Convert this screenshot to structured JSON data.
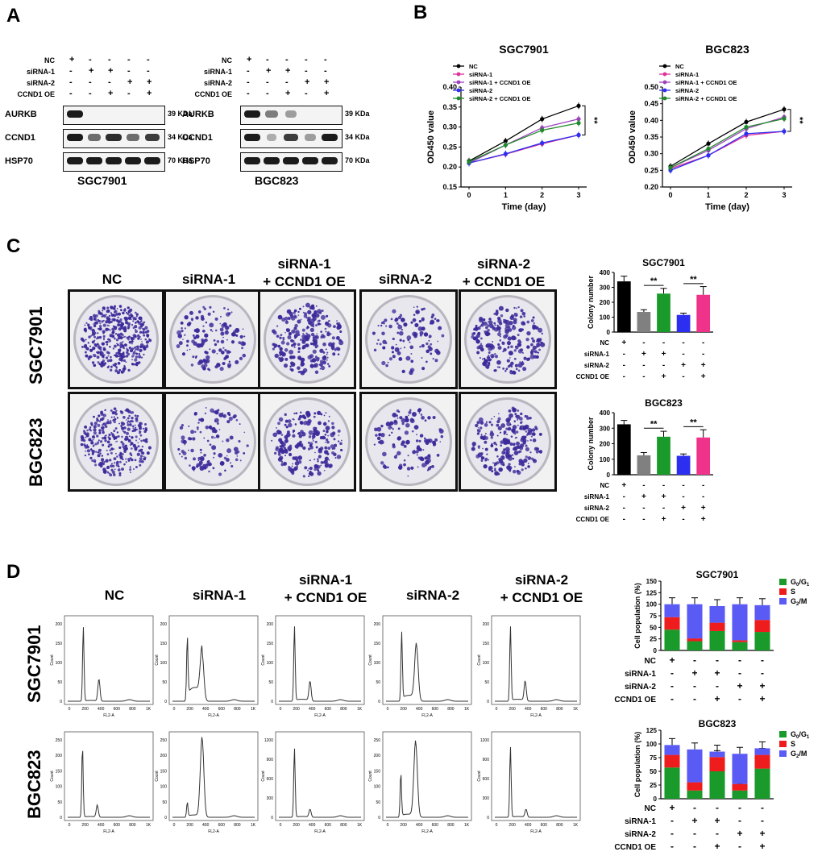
{
  "panel_letters": {
    "a": "A",
    "b": "B",
    "c": "C",
    "d": "D"
  },
  "panel_a": {
    "row_labels": [
      "NC",
      "siRNA-1",
      "siRNA-2",
      "CCND1 OE"
    ],
    "signs": [
      [
        "+",
        "-",
        "-",
        "-",
        "-"
      ],
      [
        "-",
        "+",
        "+",
        "-",
        "-"
      ],
      [
        "-",
        "-",
        "-",
        "+",
        "+"
      ],
      [
        "-",
        "-",
        "+",
        "-",
        "+"
      ]
    ],
    "blots": [
      {
        "name": "SGC7901",
        "proteins": [
          "AURKB",
          "CCND1",
          "HSP70"
        ],
        "kda": [
          "39 KDa",
          "34 KDa",
          "70 KDa"
        ]
      },
      {
        "name": "BGC823",
        "proteins": [
          "AURKB",
          "CCND1",
          "HSP70"
        ],
        "kda": [
          "39 KDa",
          "34 KDa",
          "70 KDa"
        ]
      }
    ]
  },
  "panel_c": {
    "column_titles": [
      [
        "NC"
      ],
      [
        "siRNA-1"
      ],
      [
        "siRNA-1",
        "+ CCND1 OE"
      ],
      [
        "siRNA-2"
      ],
      [
        "siRNA-2",
        "+ CCND1 OE"
      ]
    ],
    "row_labels": [
      "SGC7901",
      "BGC823"
    ],
    "colony_dots_per_plate": [
      [
        430,
        130,
        240,
        110,
        220
      ],
      [
        340,
        120,
        210,
        120,
        220
      ]
    ]
  },
  "panel_d": {
    "column_titles": [
      [
        "NC"
      ],
      [
        "siRNA-1"
      ],
      [
        "siRNA-1",
        "+ CCND1 OE"
      ],
      [
        "siRNA-2"
      ],
      [
        "siRNA-2",
        "+ CCND1 OE"
      ]
    ],
    "row_labels": [
      "SGC7901",
      "BGC823"
    ],
    "hist_x_ticks": [
      "0",
      "200",
      "400",
      "600",
      "800",
      "1K"
    ],
    "hist_xlabel": "FL2-A",
    "hist_ylabel": "Count",
    "hist_y_ticks_sgc": [
      "0",
      "50",
      "100",
      "150",
      "200"
    ],
    "hist_y_ticks_bgc_a": [
      "0",
      "50",
      "100",
      "150",
      "200",
      "250"
    ],
    "hist_y_ticks_bgc_b": [
      "0",
      "300",
      "600",
      "900",
      "1200"
    ]
  },
  "chart_data": [
    {
      "type": "line",
      "title": "SGC7901",
      "xlabel": "Time (day)",
      "ylabel": "OD450 value",
      "x": [
        0,
        1,
        2,
        3
      ],
      "ylim": [
        0.15,
        0.4
      ],
      "yticks": [
        0.15,
        0.2,
        0.25,
        0.3,
        0.35,
        0.4
      ],
      "series": [
        {
          "name": "NC",
          "color": "#000000",
          "values": [
            0.215,
            0.265,
            0.32,
            0.353
          ]
        },
        {
          "name": "siRNA-1",
          "color": "#e0309a",
          "values": [
            0.21,
            0.232,
            0.258,
            0.28
          ]
        },
        {
          "name": "siRNA-1 + CCND1 OE",
          "color": "#a040c0",
          "values": [
            0.21,
            0.255,
            0.298,
            0.32
          ]
        },
        {
          "name": "siRNA-2",
          "color": "#2d2ff0",
          "values": [
            0.21,
            0.233,
            0.26,
            0.28
          ]
        },
        {
          "name": "siRNA-2 + CCND1 OE",
          "color": "#1f8a2a",
          "values": [
            0.213,
            0.255,
            0.292,
            0.31
          ]
        }
      ],
      "annotation": "**"
    },
    {
      "type": "line",
      "title": "BGC823",
      "xlabel": "Time (day)",
      "ylabel": "OD450 value",
      "x": [
        0,
        1,
        2,
        3
      ],
      "ylim": [
        0.2,
        0.5
      ],
      "yticks": [
        0.2,
        0.25,
        0.3,
        0.35,
        0.4,
        0.45,
        0.5
      ],
      "series": [
        {
          "name": "NC",
          "color": "#000000",
          "values": [
            0.262,
            0.33,
            0.395,
            0.433
          ]
        },
        {
          "name": "siRNA-1",
          "color": "#e0309a",
          "values": [
            0.255,
            0.295,
            0.355,
            0.367
          ]
        },
        {
          "name": "siRNA-1 + CCND1 OE",
          "color": "#a040c0",
          "values": [
            0.258,
            0.31,
            0.375,
            0.41
          ]
        },
        {
          "name": "siRNA-2",
          "color": "#2d2ff0",
          "values": [
            0.25,
            0.295,
            0.36,
            0.367
          ]
        },
        {
          "name": "siRNA-2 + CCND1 OE",
          "color": "#1f8a2a",
          "values": [
            0.258,
            0.315,
            0.38,
            0.405
          ]
        }
      ],
      "annotation": "**"
    },
    {
      "type": "bar",
      "title": "SGC7901",
      "ylabel": "Colony number",
      "ylim": [
        0,
        400
      ],
      "yticks": [
        0,
        100,
        200,
        300,
        400
      ],
      "categories": [
        "1",
        "2",
        "3",
        "4",
        "5"
      ],
      "values": [
        340,
        135,
        258,
        115,
        250
      ],
      "errors": [
        35,
        15,
        35,
        12,
        55
      ],
      "colors": [
        "#000000",
        "#808080",
        "#1a9a2a",
        "#2d2ff0",
        "#f0338a"
      ],
      "row_labels": [
        "NC",
        "siRNA-1",
        "siRNA-2",
        "CCND1 OE"
      ],
      "signs": [
        [
          "+",
          "-",
          "-",
          "-",
          "-"
        ],
        [
          "-",
          "+",
          "+",
          "-",
          "-"
        ],
        [
          "-",
          "-",
          "-",
          "+",
          "+"
        ],
        [
          "-",
          "-",
          "+",
          "-",
          "+"
        ]
      ],
      "significance": [
        {
          "from": 1,
          "to": 2,
          "label": "**"
        },
        {
          "from": 3,
          "to": 4,
          "label": "**"
        }
      ]
    },
    {
      "type": "bar",
      "title": "BGC823",
      "ylabel": "Colony number",
      "ylim": [
        0,
        400
      ],
      "yticks": [
        0,
        100,
        200,
        300,
        400
      ],
      "categories": [
        "1",
        "2",
        "3",
        "4",
        "5"
      ],
      "values": [
        325,
        125,
        245,
        122,
        240
      ],
      "errors": [
        25,
        18,
        35,
        12,
        50
      ],
      "colors": [
        "#000000",
        "#808080",
        "#1a9a2a",
        "#2d2ff0",
        "#f0338a"
      ],
      "row_labels": [
        "NC",
        "siRNA-1",
        "siRNA-2",
        "CCND1 OE"
      ],
      "signs": [
        [
          "+",
          "-",
          "-",
          "-",
          "-"
        ],
        [
          "-",
          "+",
          "+",
          "-",
          "-"
        ],
        [
          "-",
          "-",
          "-",
          "+",
          "+"
        ],
        [
          "-",
          "-",
          "+",
          "-",
          "+"
        ]
      ],
      "significance": [
        {
          "from": 1,
          "to": 2,
          "label": "**"
        },
        {
          "from": 3,
          "to": 4,
          "label": "**"
        }
      ]
    },
    {
      "type": "bar",
      "stacked": true,
      "title": "SGC7901",
      "ylabel": "Cell population (%)",
      "ylim": [
        0,
        150
      ],
      "yticks": [
        0,
        25,
        50,
        75,
        100,
        125,
        150
      ],
      "categories": [
        "1",
        "2",
        "3",
        "4",
        "5"
      ],
      "series": [
        {
          "name": "G0/G1",
          "color": "#1a9a2a",
          "values": [
            45,
            20,
            42,
            18,
            40
          ]
        },
        {
          "name": "S",
          "color": "#ee1c1c",
          "values": [
            27,
            6,
            18,
            4,
            26
          ]
        },
        {
          "name": "G2/M",
          "color": "#5a5af5",
          "values": [
            28,
            74,
            36,
            78,
            32
          ]
        }
      ],
      "row_labels": [
        "NC",
        "siRNA-1",
        "siRNA-2",
        "CCND1 OE"
      ],
      "signs": [
        [
          "+",
          "-",
          "-",
          "-",
          "-"
        ],
        [
          "-",
          "+",
          "+",
          "-",
          "-"
        ],
        [
          "-",
          "-",
          "-",
          "+",
          "+"
        ],
        [
          "-",
          "-",
          "+",
          "-",
          "+"
        ]
      ]
    },
    {
      "type": "bar",
      "stacked": true,
      "title": "BGC823",
      "ylabel": "Cell population (%)",
      "ylim": [
        0,
        125
      ],
      "yticks": [
        0,
        25,
        50,
        75,
        100,
        125
      ],
      "categories": [
        "1",
        "2",
        "3",
        "4",
        "5"
      ],
      "series": [
        {
          "name": "G0/G1",
          "color": "#1a9a2a",
          "values": [
            57,
            15,
            50,
            15,
            55
          ]
        },
        {
          "name": "S",
          "color": "#ee1c1c",
          "values": [
            23,
            15,
            26,
            12,
            25
          ]
        },
        {
          "name": "G2/M",
          "color": "#5a5af5",
          "values": [
            18,
            60,
            10,
            55,
            12
          ]
        }
      ],
      "row_labels": [
        "NC",
        "siRNA-1",
        "siRNA-2",
        "CCND1 OE"
      ],
      "signs": [
        [
          "+",
          "-",
          "-",
          "-",
          "-"
        ],
        [
          "-",
          "+",
          "+",
          "-",
          "-"
        ],
        [
          "-",
          "-",
          "-",
          "+",
          "+"
        ],
        [
          "-",
          "-",
          "+",
          "-",
          "+"
        ]
      ]
    }
  ]
}
